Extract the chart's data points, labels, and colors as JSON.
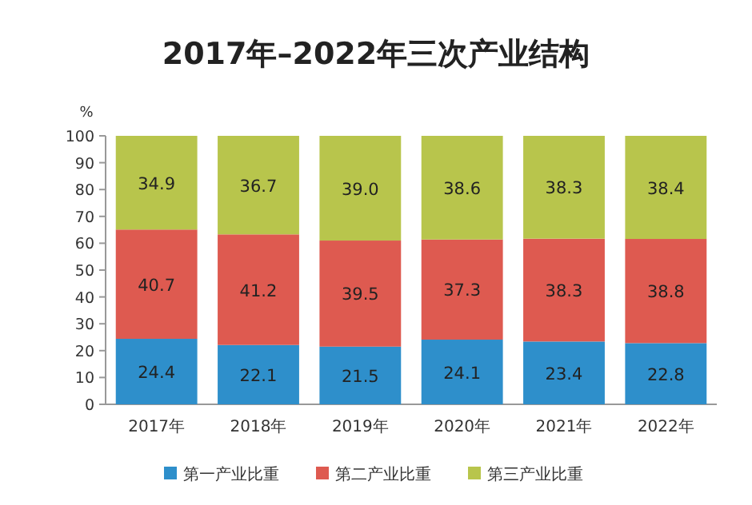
{
  "chart_data": {
    "type": "bar",
    "stacked": true,
    "title": "2017年–2022年三次产业结构",
    "ylabel": "%",
    "categories": [
      "2017年",
      "2018年",
      "2019年",
      "2020年",
      "2021年",
      "2022年"
    ],
    "series": [
      {
        "name": "第一产业比重",
        "color": "#2e8fcb",
        "values": [
          24.4,
          22.1,
          21.5,
          24.1,
          23.4,
          22.8
        ]
      },
      {
        "name": "第二产业比重",
        "color": "#de5a50",
        "values": [
          40.7,
          41.2,
          39.5,
          37.3,
          38.3,
          38.8
        ]
      },
      {
        "name": "第三产业比重",
        "color": "#b8c54c",
        "values": [
          34.9,
          36.7,
          39.0,
          38.6,
          38.3,
          38.4
        ],
        "value_labels": [
          "34.9",
          "36.7",
          "39.0",
          "38.6",
          "38.3",
          "38.4"
        ]
      }
    ],
    "ylim": [
      0,
      100
    ],
    "yticks": [
      0,
      10,
      20,
      30,
      40,
      50,
      60,
      70,
      80,
      90,
      100
    ],
    "data_labels": true,
    "legend": "bottom"
  }
}
